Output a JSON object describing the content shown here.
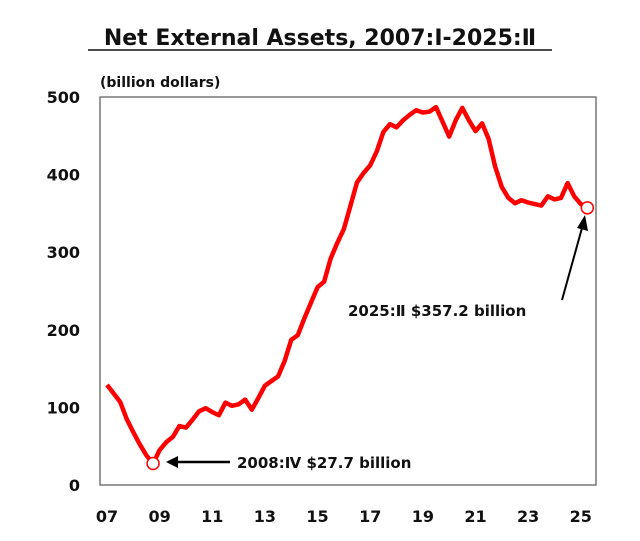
{
  "chart_data": {
    "type": "line",
    "title": "Net External Assets, 2007:Ⅰ-2025:Ⅱ",
    "ylabel": "(billion dollars)",
    "xlabel": "",
    "ylim": [
      0,
      500
    ],
    "yticks": [
      0,
      100,
      200,
      300,
      400,
      500
    ],
    "xtick_labels": [
      "07",
      "09",
      "11",
      "13",
      "15",
      "17",
      "19",
      "21",
      "23",
      "25"
    ],
    "x_start": "2007:I",
    "frequency": "quarterly",
    "grid": false,
    "series": [
      {
        "name": "Net External Assets",
        "color": "#ff0000",
        "values": [
          129,
          118,
          107,
          85,
          68,
          52,
          38,
          27.7,
          45,
          55,
          62,
          76,
          74,
          84,
          95,
          99,
          94,
          90,
          106,
          102,
          104,
          110,
          97,
          112,
          128,
          134,
          140,
          160,
          187,
          193,
          215,
          235,
          255,
          262,
          292,
          312,
          330,
          360,
          390,
          402,
          412,
          430,
          455,
          465,
          461,
          470,
          477,
          483,
          480,
          481,
          487,
          468,
          449,
          470,
          486,
          470,
          456,
          466,
          446,
          410,
          384,
          370,
          363,
          367,
          364,
          362,
          360,
          372,
          368,
          370,
          389,
          372,
          362,
          357.2
        ]
      }
    ],
    "annotations": [
      {
        "text": "2008:Ⅳ $27.7 billion",
        "point": "2008:IV",
        "value": 27.7
      },
      {
        "text": "2025:Ⅱ $357.2 billion",
        "point": "2025:II",
        "value": 357.2
      }
    ]
  }
}
